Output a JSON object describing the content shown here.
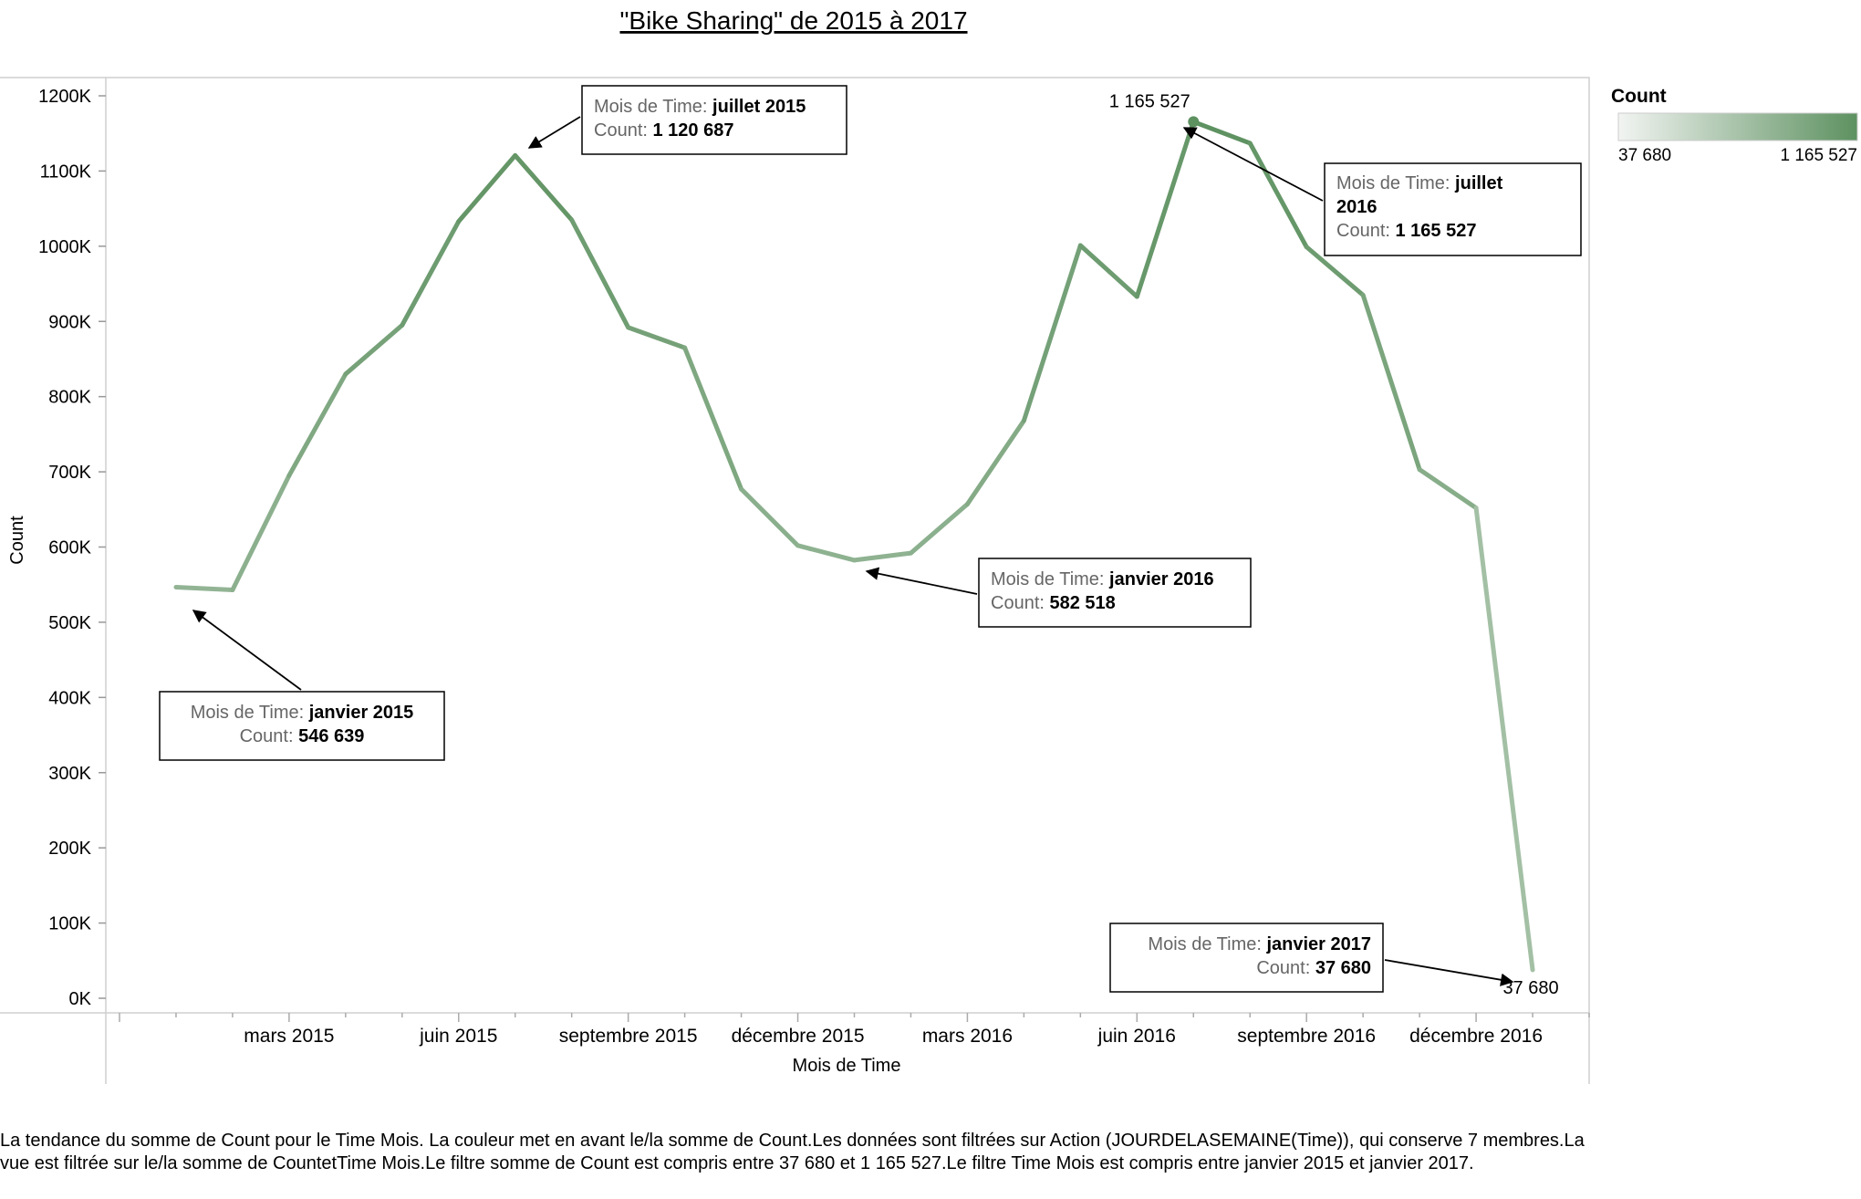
{
  "chart_data": {
    "type": "line",
    "title": "\"Bike Sharing\" de 2015 à 2017",
    "xlabel": "Mois de Time",
    "ylabel": "Count",
    "ylim": [
      0,
      1200000
    ],
    "yticks": [
      {
        "value": 0,
        "label": "0K"
      },
      {
        "value": 100000,
        "label": "100K"
      },
      {
        "value": 200000,
        "label": "200K"
      },
      {
        "value": 300000,
        "label": "300K"
      },
      {
        "value": 400000,
        "label": "400K"
      },
      {
        "value": 500000,
        "label": "500K"
      },
      {
        "value": 600000,
        "label": "600K"
      },
      {
        "value": 700000,
        "label": "700K"
      },
      {
        "value": 800000,
        "label": "800K"
      },
      {
        "value": 900000,
        "label": "900K"
      },
      {
        "value": 1000000,
        "label": "1000K"
      },
      {
        "value": 1100000,
        "label": "1100K"
      },
      {
        "value": 1200000,
        "label": "1200K"
      }
    ],
    "xtick_labels": [
      {
        "month": "2015-03",
        "label": "mars 2015"
      },
      {
        "month": "2015-06",
        "label": "juin 2015"
      },
      {
        "month": "2015-09",
        "label": "septembre 2015"
      },
      {
        "month": "2015-12",
        "label": "décembre 2015"
      },
      {
        "month": "2016-03",
        "label": "mars 2016"
      },
      {
        "month": "2016-06",
        "label": "juin 2016"
      },
      {
        "month": "2016-09",
        "label": "septembre 2016"
      },
      {
        "month": "2016-12",
        "label": "décembre 2016"
      }
    ],
    "x_axis_range": [
      "2014-12",
      "2017-02"
    ],
    "grid": false,
    "series": [
      {
        "x": [
          "2015-01",
          "2015-02",
          "2015-03",
          "2015-04",
          "2015-05",
          "2015-06",
          "2015-07",
          "2015-08",
          "2015-09",
          "2015-10",
          "2015-11",
          "2015-12",
          "2016-01",
          "2016-02",
          "2016-03",
          "2016-04",
          "2016-05",
          "2016-06",
          "2016-07",
          "2016-08",
          "2016-09",
          "2016-10",
          "2016-11",
          "2016-12",
          "2017-01"
        ],
        "values": [
          546639,
          543000,
          695000,
          830000,
          895000,
          1033000,
          1120687,
          1035000,
          892000,
          865000,
          677000,
          602000,
          582518,
          592000,
          657000,
          768000,
          1001000,
          933000,
          1165527,
          1137000,
          999000,
          935000,
          703000,
          652000,
          37680
        ]
      }
    ],
    "point_labels": [
      {
        "month": "2016-07",
        "text": "1 165 527"
      },
      {
        "month": "2017-01",
        "text": "37 680"
      }
    ],
    "annotations": [
      {
        "month": "2015-07",
        "box_field": "Mois de Time:",
        "box_value": "juillet 2015",
        "count_field": "Count:",
        "count_value": "1 120 687"
      },
      {
        "month": "2016-07",
        "box_field": "Mois de Time:",
        "box_value": "juillet 2016",
        "count_field": "Count:",
        "count_value": "1 165 527"
      },
      {
        "month": "2016-01",
        "box_field": "Mois de Time:",
        "box_value": "janvier 2016",
        "count_field": "Count:",
        "count_value": "582 518"
      },
      {
        "month": "2015-01",
        "box_field": "Mois de Time:",
        "box_value": "janvier 2015",
        "count_field": "Count:",
        "count_value": "546 639"
      },
      {
        "month": "2017-01",
        "box_field": "Mois de Time:",
        "box_value": "janvier 2017",
        "count_field": "Count:",
        "count_value": "37 680"
      }
    ],
    "legend": {
      "title": "Count",
      "placement": "top-right",
      "min_label": "37 680",
      "max_label": "1 165 527",
      "color_low": "#f2f4f2",
      "color_high": "#5d9160"
    }
  },
  "caption": "La tendance du somme de Count pour le Time Mois. La couleur met en avant le/la somme de Count.Les données sont filtrées sur Action (JOURDELASEMAINE(Time)), qui conserve 7 membres.La vue est filtrée sur le/la somme de CountetTime Mois.Le filtre somme de Count est compris entre 37 680 et 1 165 527.Le filtre Time Mois est compris entre janvier 2015 et janvier 2017."
}
